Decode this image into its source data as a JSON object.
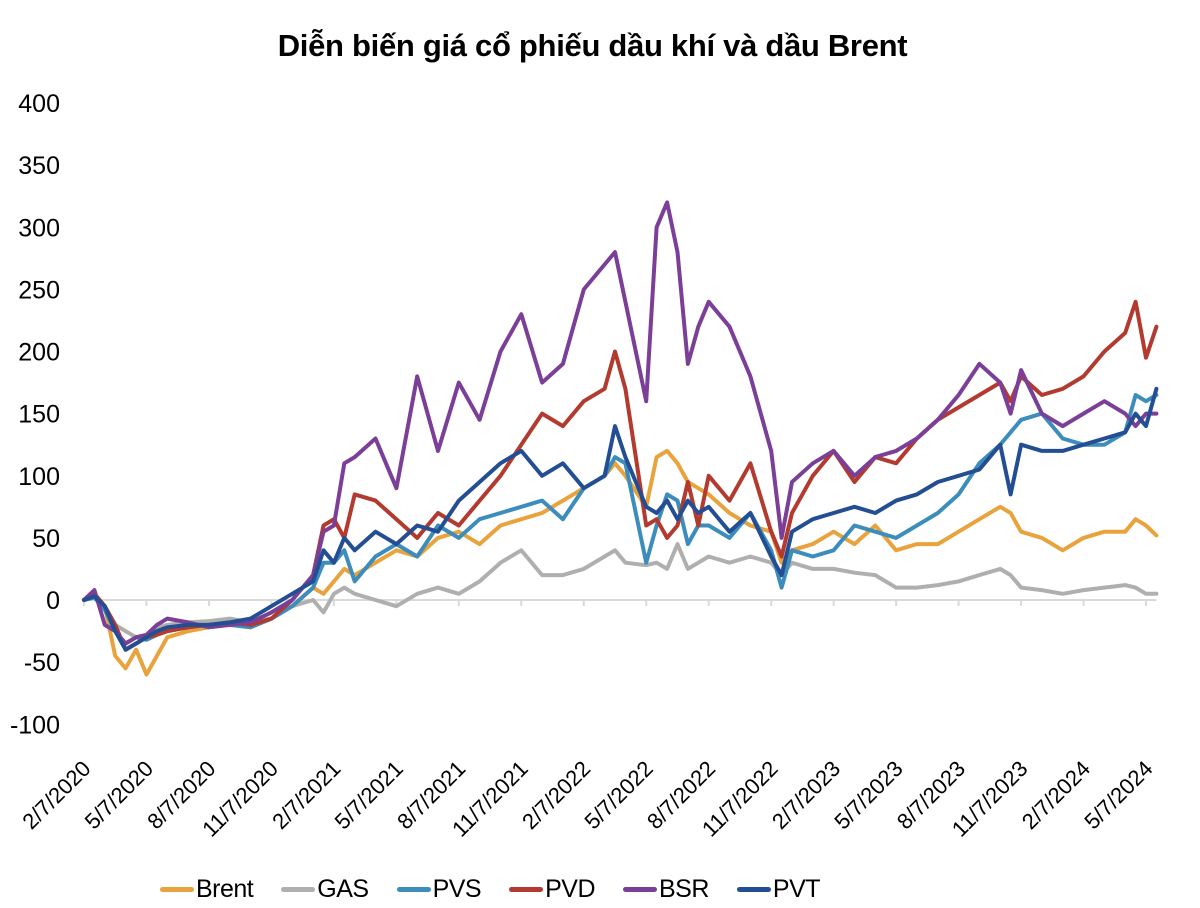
{
  "chart_data": {
    "type": "line",
    "title": "Diễn biến giá cổ phiếu dầu khí và dầu Brent",
    "xlabel": "",
    "ylabel": "",
    "ylim": [
      -100,
      400
    ],
    "yticks": [
      "400",
      "350",
      "300",
      "250",
      "200",
      "150",
      "100",
      "50",
      "0",
      "-50",
      "-100"
    ],
    "ytick_values": [
      400,
      350,
      300,
      250,
      200,
      150,
      100,
      50,
      0,
      -50,
      -100
    ],
    "x_unit": "months since 2/7/2020",
    "xlim": [
      0,
      51.5
    ],
    "xticks": [
      "2/7/2020",
      "5/7/2020",
      "8/7/2020",
      "11/7/2020",
      "2/7/2021",
      "5/7/2021",
      "8/7/2021",
      "11/7/2021",
      "2/7/2022",
      "5/7/2022",
      "8/7/2022",
      "11/7/2022",
      "2/7/2023",
      "5/7/2023",
      "8/7/2023",
      "11/7/2023",
      "2/7/2024",
      "5/7/2024"
    ],
    "xtick_values": [
      0,
      3,
      6,
      9,
      12,
      15,
      18,
      21,
      24,
      27,
      30,
      33,
      36,
      39,
      42,
      45,
      48,
      51
    ],
    "grid": false,
    "legend_position": "bottom",
    "x": [
      0,
      0.5,
      1,
      1.5,
      2,
      2.5,
      3,
      3.5,
      4,
      5,
      6,
      7,
      8,
      9,
      10,
      11,
      11.5,
      12,
      12.5,
      13,
      14,
      15,
      16,
      17,
      18,
      19,
      20,
      21,
      22,
      23,
      24,
      25,
      25.5,
      26,
      27,
      27.5,
      28,
      28.5,
      29,
      29.5,
      30,
      31,
      32,
      33,
      33.5,
      34,
      35,
      36,
      37,
      38,
      39,
      40,
      41,
      42,
      43,
      44,
      44.5,
      45,
      46,
      47,
      48,
      49,
      50,
      50.5,
      51,
      51.5
    ],
    "series": [
      {
        "name": "Brent",
        "color": "#E8A33D",
        "values": [
          0,
          5,
          -5,
          -45,
          -55,
          -40,
          -60,
          -45,
          -30,
          -25,
          -22,
          -20,
          -22,
          -15,
          -5,
          10,
          5,
          15,
          25,
          20,
          30,
          40,
          35,
          50,
          55,
          45,
          60,
          65,
          70,
          80,
          90,
          100,
          110,
          100,
          75,
          115,
          120,
          110,
          95,
          90,
          85,
          70,
          60,
          55,
          30,
          40,
          45,
          55,
          45,
          60,
          40,
          45,
          45,
          55,
          65,
          75,
          70,
          55,
          50,
          40,
          50,
          55,
          55,
          65,
          60,
          52
        ]
      },
      {
        "name": "GAS",
        "color": "#AFAFAF",
        "values": [
          0,
          3,
          -5,
          -20,
          -25,
          -30,
          -28,
          -22,
          -20,
          -18,
          -17,
          -15,
          -18,
          -15,
          -5,
          0,
          -10,
          5,
          10,
          5,
          0,
          -5,
          5,
          10,
          5,
          15,
          30,
          40,
          20,
          20,
          25,
          35,
          40,
          30,
          28,
          30,
          25,
          45,
          25,
          30,
          35,
          30,
          35,
          30,
          20,
          30,
          25,
          25,
          22,
          20,
          10,
          10,
          12,
          15,
          20,
          25,
          20,
          10,
          8,
          5,
          8,
          10,
          12,
          10,
          5,
          5
        ]
      },
      {
        "name": "PVS",
        "color": "#3C8DBC",
        "values": [
          0,
          2,
          -8,
          -25,
          -35,
          -30,
          -32,
          -28,
          -25,
          -22,
          -20,
          -20,
          -22,
          -15,
          -5,
          10,
          30,
          30,
          40,
          15,
          35,
          45,
          35,
          60,
          50,
          65,
          70,
          75,
          80,
          65,
          90,
          100,
          115,
          110,
          30,
          60,
          85,
          80,
          45,
          60,
          60,
          50,
          70,
          40,
          10,
          40,
          35,
          40,
          60,
          55,
          50,
          60,
          70,
          85,
          110,
          125,
          135,
          145,
          150,
          130,
          125,
          125,
          135,
          165,
          160,
          165
        ]
      },
      {
        "name": "PVD",
        "color": "#B23A2F",
        "values": [
          0,
          5,
          -5,
          -20,
          -40,
          -35,
          -30,
          -28,
          -25,
          -22,
          -20,
          -18,
          -20,
          -15,
          0,
          20,
          60,
          65,
          50,
          85,
          80,
          65,
          50,
          70,
          60,
          80,
          100,
          125,
          150,
          140,
          160,
          170,
          200,
          170,
          60,
          65,
          50,
          60,
          95,
          60,
          100,
          80,
          110,
          55,
          35,
          70,
          100,
          120,
          95,
          115,
          110,
          130,
          145,
          155,
          165,
          175,
          160,
          180,
          165,
          170,
          180,
          200,
          215,
          240,
          195,
          220
        ]
      },
      {
        "name": "BSR",
        "color": "#7B3F98",
        "values": [
          0,
          8,
          -20,
          -25,
          -35,
          -30,
          -28,
          -20,
          -15,
          -18,
          -22,
          -20,
          -18,
          -10,
          0,
          20,
          55,
          60,
          110,
          115,
          130,
          90,
          180,
          120,
          175,
          145,
          200,
          230,
          175,
          190,
          250,
          270,
          280,
          240,
          160,
          300,
          320,
          280,
          190,
          220,
          240,
          220,
          180,
          120,
          50,
          95,
          110,
          120,
          100,
          115,
          120,
          130,
          145,
          165,
          190,
          175,
          150,
          185,
          150,
          140,
          150,
          160,
          150,
          140,
          150,
          150
        ]
      },
      {
        "name": "PVT",
        "color": "#234E93",
        "values": [
          0,
          3,
          -5,
          -25,
          -40,
          -35,
          -30,
          -25,
          -22,
          -20,
          -20,
          -18,
          -15,
          -5,
          5,
          15,
          40,
          30,
          50,
          40,
          55,
          45,
          60,
          55,
          80,
          95,
          110,
          120,
          100,
          110,
          90,
          100,
          140,
          115,
          75,
          70,
          80,
          65,
          80,
          70,
          75,
          55,
          70,
          35,
          20,
          55,
          65,
          70,
          75,
          70,
          80,
          85,
          95,
          100,
          105,
          125,
          85,
          125,
          120,
          120,
          125,
          130,
          135,
          150,
          140,
          170
        ]
      }
    ]
  }
}
